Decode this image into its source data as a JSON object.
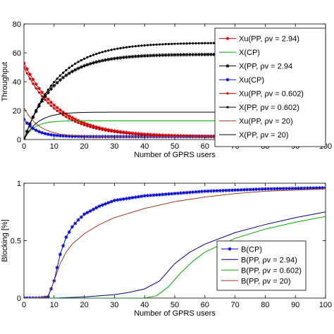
{
  "chart_data": [
    {
      "type": "line",
      "title": "",
      "xlabel": "Number of GPRS users",
      "ylabel": "Throughput",
      "xlim": [
        0,
        100
      ],
      "ylim": [
        0,
        80
      ],
      "xticks": [
        0,
        10,
        20,
        30,
        40,
        50,
        60,
        70,
        80,
        90,
        100
      ],
      "yticks": [
        0,
        20,
        40,
        60,
        80
      ],
      "grid": false,
      "legend_position": "top-right",
      "series": [
        {
          "name": "Xu(PP, ρv = 2.94)",
          "color": "#cc0000",
          "marker": "star",
          "kind": "decay",
          "start": 53,
          "end": 2,
          "k": 0.085
        },
        {
          "name": "X(CP)",
          "color": "#00aa00",
          "marker": "none",
          "kind": "sat",
          "start": 0,
          "end": 13,
          "k": 0.3
        },
        {
          "name": "X(PP, ρv = 2.94",
          "color": "#000000",
          "marker": "star",
          "kind": "sat",
          "start": 0,
          "end": 59,
          "k": 0.1
        },
        {
          "name": "Xu(CP)",
          "color": "#0000cc",
          "marker": "star",
          "kind": "decay",
          "start": 14,
          "end": 2,
          "k": 0.25
        },
        {
          "name": "Xu(PP, ρv = 0.602)",
          "color": "#cc0000",
          "marker": "dot",
          "kind": "decay",
          "start": 50,
          "end": 2,
          "k": 0.09
        },
        {
          "name": "X(PP, ρv = 0.602)",
          "color": "#000000",
          "marker": "dot",
          "kind": "sat",
          "start": 0,
          "end": 67,
          "k": 0.09
        },
        {
          "name": "Xu(PP, ρv = 20)",
          "color": "#a04020",
          "marker": "none",
          "kind": "decay",
          "start": 22,
          "end": 2,
          "k": 0.2
        },
        {
          "name": "X(PP, ρv = 20)",
          "color": "#000000",
          "marker": "none",
          "kind": "sat",
          "start": 0,
          "end": 19,
          "k": 0.22
        }
      ]
    },
    {
      "type": "line",
      "title": "",
      "xlabel": "Number of GPRS users",
      "ylabel": "Blocking [%]",
      "xlim": [
        0,
        100
      ],
      "ylim": [
        0,
        1
      ],
      "xticks": [
        0,
        10,
        20,
        30,
        40,
        50,
        60,
        70,
        80,
        90,
        100
      ],
      "yticks": [
        0,
        0.5,
        1
      ],
      "grid": false,
      "legend_position": "bottom-right",
      "series": [
        {
          "name": "B(CP)",
          "color": "#0000cc",
          "marker": "star",
          "x": [
            0,
            5,
            8,
            10,
            12,
            14,
            16,
            18,
            20,
            25,
            30,
            40,
            50,
            60,
            70,
            80,
            90,
            100
          ],
          "y": [
            0,
            0,
            0.01,
            0.15,
            0.38,
            0.53,
            0.62,
            0.68,
            0.73,
            0.8,
            0.85,
            0.89,
            0.91,
            0.93,
            0.94,
            0.95,
            0.955,
            0.96
          ]
        },
        {
          "name": "B(PP, ρv = 2.94)",
          "color": "#000080",
          "marker": "none",
          "x": [
            0,
            10,
            20,
            30,
            35,
            40,
            45,
            50,
            55,
            60,
            70,
            80,
            90,
            100
          ],
          "y": [
            0,
            0,
            0.01,
            0.03,
            0.05,
            0.08,
            0.15,
            0.3,
            0.4,
            0.47,
            0.57,
            0.64,
            0.7,
            0.75
          ]
        },
        {
          "name": "B(PP, ρv = 0.602)",
          "color": "#00aa00",
          "marker": "none",
          "x": [
            0,
            20,
            40,
            44,
            48,
            52,
            56,
            60,
            70,
            80,
            90,
            100
          ],
          "y": [
            0,
            0,
            0,
            0.02,
            0.1,
            0.22,
            0.32,
            0.4,
            0.52,
            0.6,
            0.66,
            0.71
          ]
        },
        {
          "name": "B(PP, ρv = 20)",
          "color": "#a04020",
          "marker": "none",
          "x": [
            0,
            5,
            8,
            10,
            12,
            14,
            16,
            20,
            25,
            30,
            40,
            50,
            60,
            70,
            80,
            90,
            100
          ],
          "y": [
            0,
            0,
            0.02,
            0.15,
            0.3,
            0.4,
            0.47,
            0.56,
            0.64,
            0.7,
            0.78,
            0.84,
            0.88,
            0.91,
            0.93,
            0.94,
            0.95
          ]
        }
      ]
    }
  ]
}
